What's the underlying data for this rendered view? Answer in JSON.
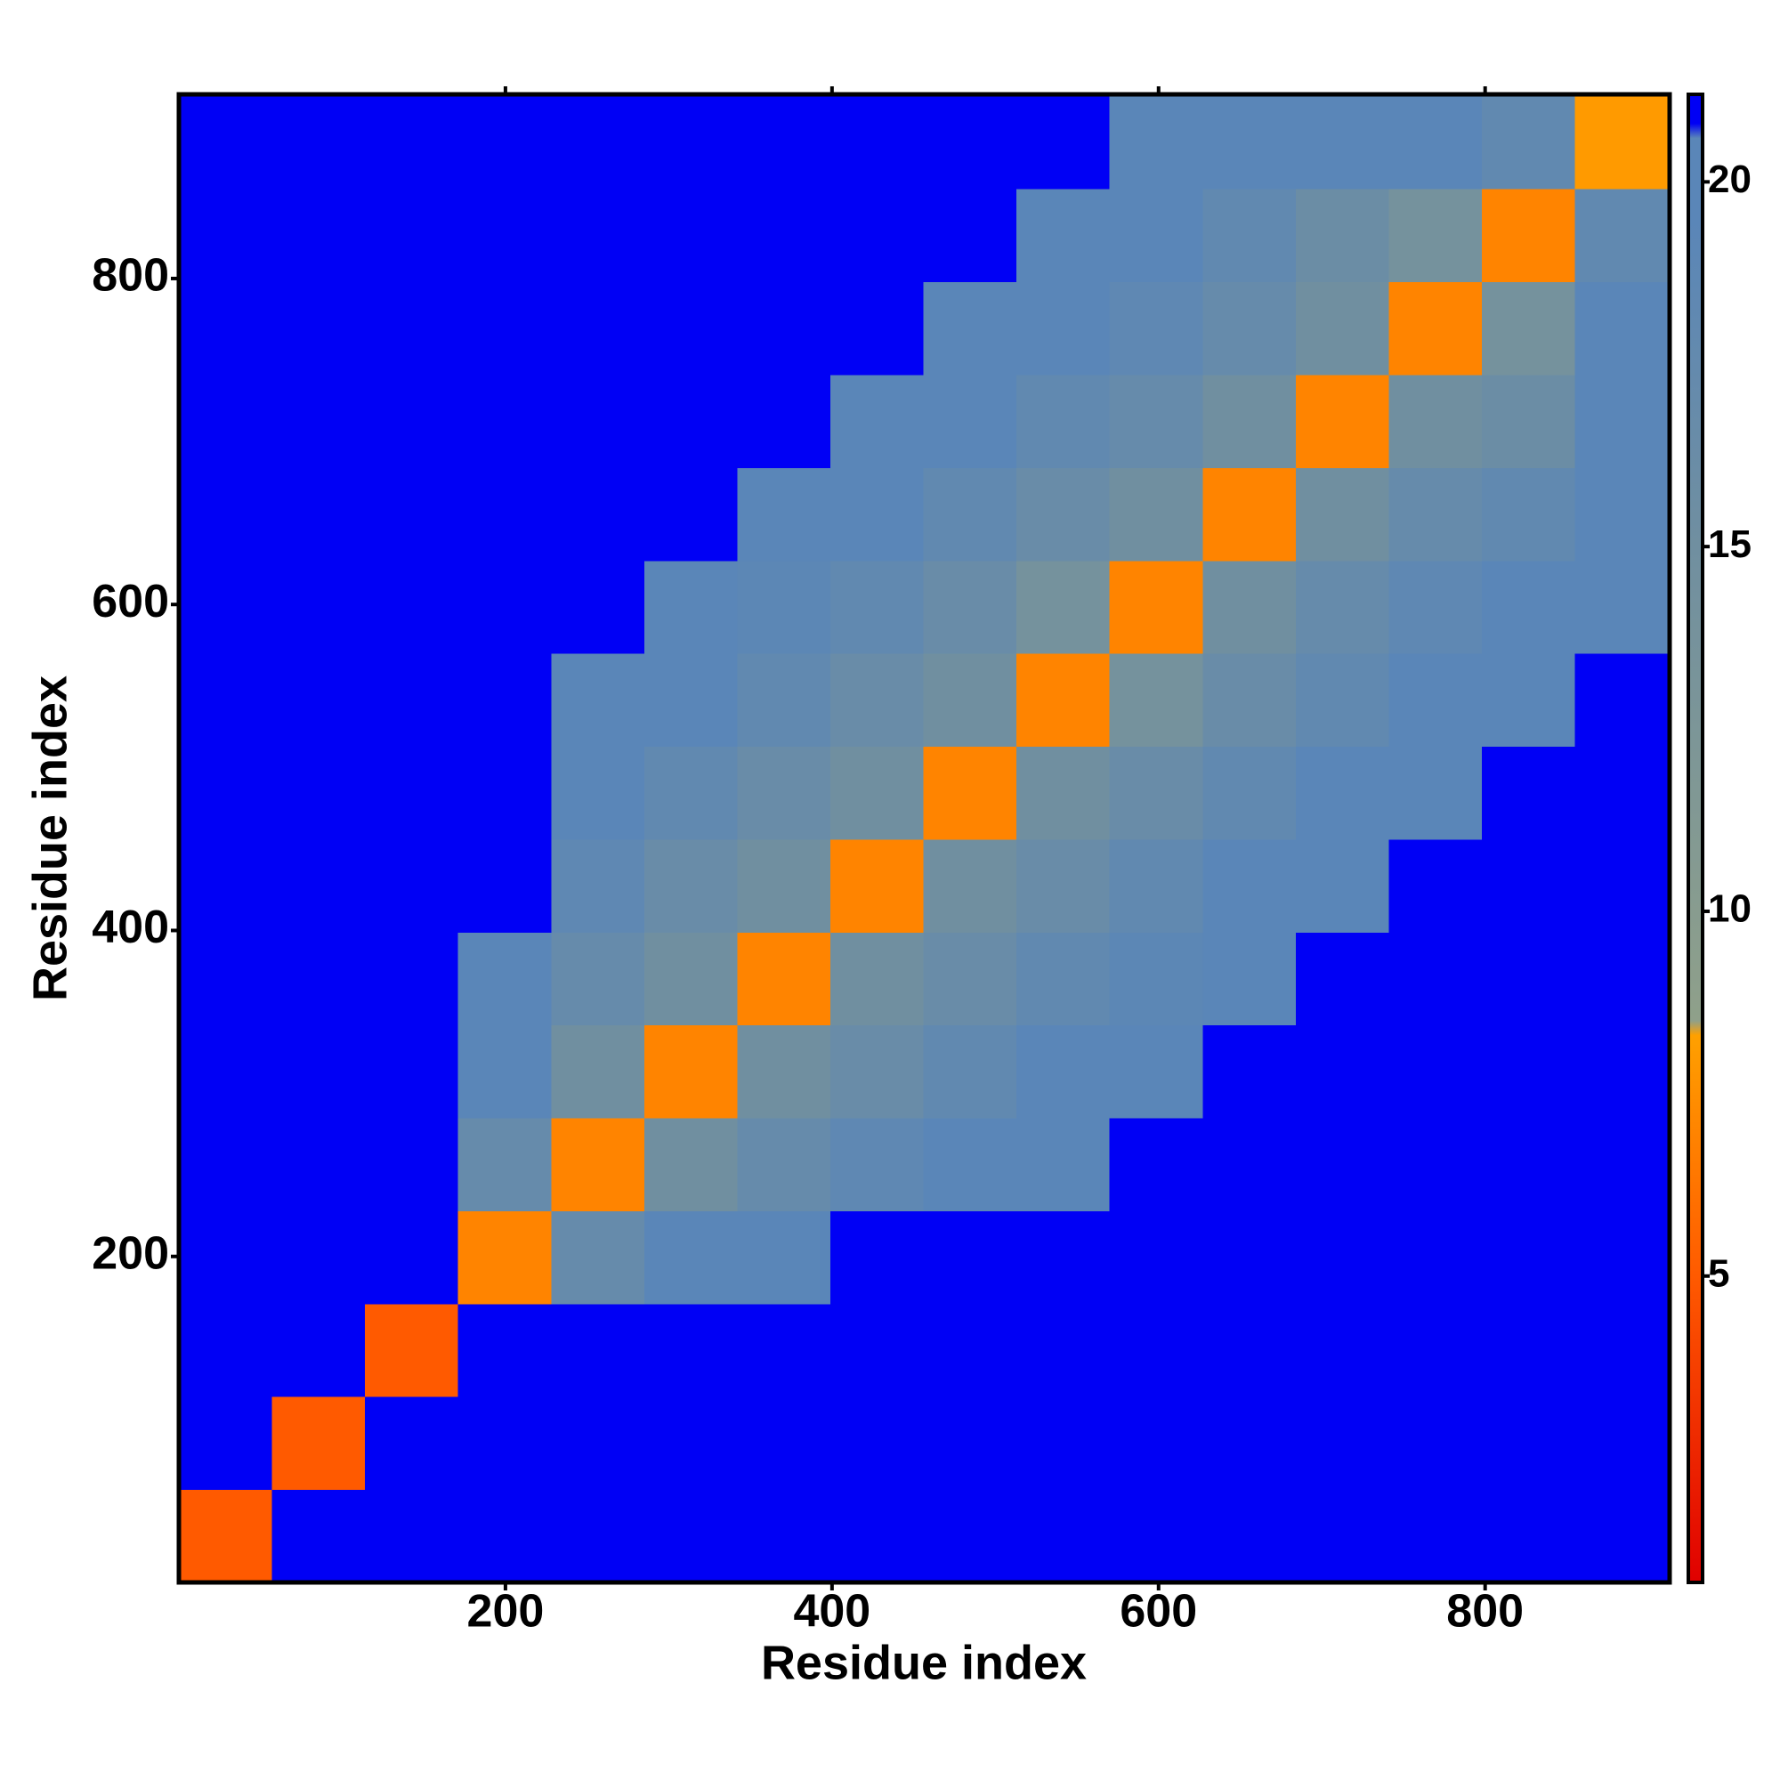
{
  "chart_data": {
    "type": "heatmap",
    "x_label": "Residue index",
    "y_label": "Residue index",
    "xlim": [
      0,
      913
    ],
    "ylim": [
      0,
      913
    ],
    "xticks": [
      200,
      400,
      600,
      800
    ],
    "yticks": [
      200,
      400,
      600,
      800
    ],
    "bins": [
      0,
      57,
      114,
      171,
      228,
      285,
      342,
      399,
      456,
      513,
      570,
      627,
      684,
      741,
      798,
      855,
      913
    ],
    "values": [
      [
        5,
        21,
        21,
        21,
        21,
        21,
        21,
        21,
        21,
        21,
        21,
        21,
        21,
        21,
        21,
        21
      ],
      [
        21,
        5,
        21,
        21,
        21,
        21,
        21,
        21,
        21,
        21,
        21,
        21,
        21,
        21,
        21,
        21
      ],
      [
        21,
        21,
        5,
        21,
        21,
        21,
        21,
        21,
        21,
        21,
        21,
        21,
        21,
        21,
        21,
        21
      ],
      [
        21,
        21,
        21,
        7,
        17,
        19.5,
        20.5,
        21,
        21,
        21,
        21,
        21,
        21,
        21,
        21,
        21
      ],
      [
        21,
        21,
        21,
        17,
        7,
        15,
        17,
        18.5,
        19.5,
        20.5,
        21,
        21,
        21,
        21,
        21,
        21
      ],
      [
        21,
        21,
        21,
        19.5,
        15,
        7,
        15,
        16.5,
        18,
        19.5,
        20.5,
        21,
        21,
        21,
        21,
        21
      ],
      [
        21,
        21,
        21,
        20.5,
        17,
        15,
        7,
        15,
        16.5,
        18,
        19,
        20.5,
        21,
        21,
        21,
        21
      ],
      [
        21,
        21,
        21,
        21,
        18.5,
        16.5,
        15,
        7,
        15,
        16.5,
        18,
        19.5,
        20.5,
        21,
        21,
        21
      ],
      [
        21,
        21,
        21,
        21,
        19.5,
        18,
        16.5,
        15,
        7,
        15,
        16.5,
        18,
        19.5,
        20.5,
        21,
        21
      ],
      [
        21,
        21,
        21,
        21,
        20.5,
        19.5,
        18,
        16.5,
        15,
        7,
        14,
        16.5,
        18,
        19.5,
        20.5,
        21
      ],
      [
        21,
        21,
        21,
        21,
        21,
        20.5,
        19,
        18,
        16.5,
        14,
        7,
        15,
        17,
        18.5,
        19.5,
        20.5
      ],
      [
        21,
        21,
        21,
        21,
        21,
        21,
        20.5,
        19.5,
        18,
        16.5,
        15,
        7,
        15,
        17,
        18,
        20.5
      ],
      [
        21,
        21,
        21,
        21,
        21,
        21,
        21,
        20.5,
        19.5,
        18,
        17,
        15,
        7,
        15,
        16,
        20
      ],
      [
        21,
        21,
        21,
        21,
        21,
        21,
        21,
        21,
        20.5,
        19.5,
        18.5,
        17,
        15,
        7,
        14,
        19.5
      ],
      [
        21,
        21,
        21,
        21,
        21,
        21,
        21,
        21,
        21,
        20.5,
        19.5,
        18,
        16,
        14,
        7,
        18
      ],
      [
        21,
        21,
        21,
        21,
        21,
        21,
        21,
        21,
        21,
        21,
        20.5,
        20.5,
        20,
        19.5,
        18,
        8
      ]
    ],
    "colorbar": {
      "lim": [
        0.8,
        21.2
      ],
      "ticks": [
        5,
        10,
        15,
        20
      ],
      "stops": [
        [
          0.8,
          "#e00000"
        ],
        [
          5,
          "#ff5a00"
        ],
        [
          8.3,
          "#ffa000"
        ],
        [
          8.5,
          "#8fa08a"
        ],
        [
          15,
          "#708fa0"
        ],
        [
          19.5,
          "#5a86b8"
        ],
        [
          20.6,
          "#5a86b8"
        ],
        [
          20.8,
          "#0000f5"
        ],
        [
          21.2,
          "#0000f5"
        ]
      ]
    }
  }
}
